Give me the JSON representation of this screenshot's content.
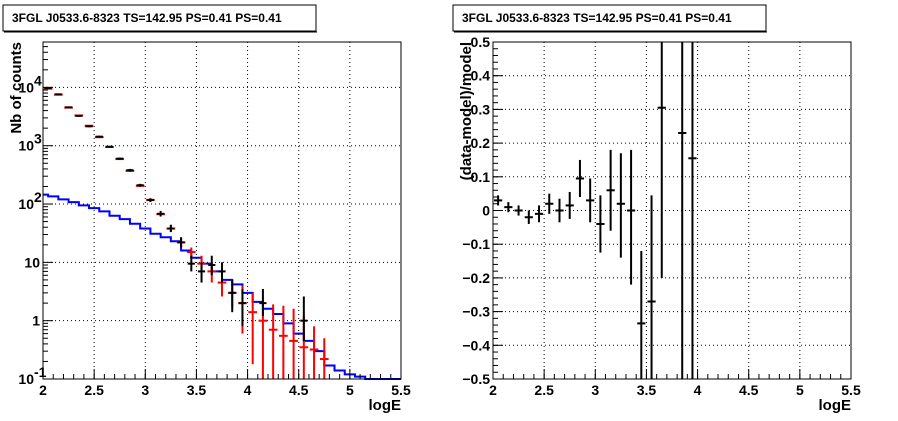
{
  "chart_data": [
    {
      "type": "line",
      "title": "3FGL J0533.6-8323 TS=142.95 PS=0.41 PS=0.41",
      "xlabel": "logE",
      "ylabel": "Nb of counts",
      "xlim": [
        2,
        5.5
      ],
      "ylim": [
        0.1,
        60000
      ],
      "yscale": "log",
      "grid": true,
      "x_ticks": [
        "2",
        "2.5",
        "3",
        "3.5",
        "4",
        "4.5",
        "5",
        "5.5"
      ],
      "y_ticks": [
        {
          "value": 0.1,
          "label": "10",
          "sup": "-1"
        },
        {
          "value": 1,
          "label": "1",
          "sup": ""
        },
        {
          "value": 10,
          "label": "10",
          "sup": ""
        },
        {
          "value": 100,
          "label": "10",
          "sup": "2"
        },
        {
          "value": 1000,
          "label": "10",
          "sup": "3"
        },
        {
          "value": 10000,
          "label": "10",
          "sup": "4"
        }
      ],
      "colors": {
        "data": "#000000",
        "model": "#ff0000",
        "component": "#0000ff"
      },
      "bin_width": 0.1,
      "series": [
        {
          "role": "model",
          "points": [
            {
              "x": 2.05,
              "y": 9500,
              "lo": 9500,
              "hi": 9500
            },
            {
              "x": 2.15,
              "y": 7500,
              "lo": 7500,
              "hi": 7500
            },
            {
              "x": 2.25,
              "y": 4500,
              "lo": 4500,
              "hi": 4500
            },
            {
              "x": 2.35,
              "y": 3300,
              "lo": 3300,
              "hi": 3300
            },
            {
              "x": 2.45,
              "y": 2200,
              "lo": 2200,
              "hi": 2200
            },
            {
              "x": 2.55,
              "y": 1400,
              "lo": 1400,
              "hi": 1400
            },
            {
              "x": 2.65,
              "y": 950,
              "lo": 950,
              "hi": 950
            },
            {
              "x": 2.75,
              "y": 590,
              "lo": 590,
              "hi": 590
            },
            {
              "x": 2.85,
              "y": 370,
              "lo": 370,
              "hi": 370
            },
            {
              "x": 2.95,
              "y": 205,
              "lo": 205,
              "hi": 205
            },
            {
              "x": 3.05,
              "y": 118,
              "lo": 118,
              "hi": 118
            },
            {
              "x": 3.15,
              "y": 67,
              "lo": 67,
              "hi": 67
            },
            {
              "x": 3.25,
              "y": 38,
              "lo": 34,
              "hi": 44
            },
            {
              "x": 3.35,
              "y": 22,
              "lo": 18,
              "hi": 26
            },
            {
              "x": 3.45,
              "y": 15,
              "lo": 12,
              "hi": 18
            },
            {
              "x": 3.55,
              "y": 9.5,
              "lo": 6.5,
              "hi": 13
            },
            {
              "x": 3.65,
              "y": 7,
              "lo": 4.5,
              "hi": 10
            },
            {
              "x": 3.75,
              "y": 4.5,
              "lo": 2.6,
              "hi": 6.5
            },
            {
              "x": 3.85,
              "y": 3.0,
              "lo": 1.7,
              "hi": 5
            },
            {
              "x": 3.95,
              "y": 2.0,
              "lo": 0.6,
              "hi": 4
            },
            {
              "x": 4.05,
              "y": 1.4,
              "lo": 0.18,
              "hi": 3.0
            },
            {
              "x": 4.15,
              "y": 1.0,
              "lo": 0.1,
              "hi": 2.2
            },
            {
              "x": 4.25,
              "y": 0.7,
              "lo": 0.1,
              "hi": 1.9
            },
            {
              "x": 4.35,
              "y": 0.55,
              "lo": 0.1,
              "hi": 1.8
            },
            {
              "x": 4.45,
              "y": 0.45,
              "lo": 0.1,
              "hi": 1.6
            },
            {
              "x": 4.55,
              "y": 0.35,
              "lo": 0.1,
              "hi": 1.2
            },
            {
              "x": 4.65,
              "y": 0.32,
              "lo": 0.1,
              "hi": 0.8
            },
            {
              "x": 4.75,
              "y": 0.22,
              "lo": 0.1,
              "hi": 0.5
            }
          ]
        },
        {
          "role": "data",
          "points": [
            {
              "x": 2.05,
              "y": 9800,
              "lo": 9600,
              "hi": 10000
            },
            {
              "x": 2.15,
              "y": 7600,
              "lo": 7450,
              "hi": 7750
            },
            {
              "x": 2.25,
              "y": 4550,
              "lo": 4450,
              "hi": 4650
            },
            {
              "x": 2.35,
              "y": 3250,
              "lo": 3150,
              "hi": 3350
            },
            {
              "x": 2.45,
              "y": 2150,
              "lo": 2080,
              "hi": 2220
            },
            {
              "x": 2.55,
              "y": 1430,
              "lo": 1380,
              "hi": 1480
            },
            {
              "x": 2.65,
              "y": 960,
              "lo": 930,
              "hi": 990
            },
            {
              "x": 2.75,
              "y": 600,
              "lo": 575,
              "hi": 625
            },
            {
              "x": 2.85,
              "y": 380,
              "lo": 360,
              "hi": 400
            },
            {
              "x": 2.95,
              "y": 210,
              "lo": 198,
              "hi": 222
            },
            {
              "x": 3.05,
              "y": 117,
              "lo": 108,
              "hi": 126
            },
            {
              "x": 3.15,
              "y": 68,
              "lo": 61,
              "hi": 76
            },
            {
              "x": 3.25,
              "y": 38,
              "lo": 33,
              "hi": 44
            },
            {
              "x": 3.35,
              "y": 22,
              "lo": 18,
              "hi": 27
            },
            {
              "x": 3.45,
              "y": 9.5,
              "lo": 7,
              "hi": 13
            },
            {
              "x": 3.55,
              "y": 7,
              "lo": 4.5,
              "hi": 10
            },
            {
              "x": 3.65,
              "y": 9,
              "lo": 6,
              "hi": 13
            },
            {
              "x": 3.75,
              "y": 7,
              "lo": 4.5,
              "hi": 10
            },
            {
              "x": 3.85,
              "y": 3,
              "lo": 1.4,
              "hi": 5
            },
            {
              "x": 3.95,
              "y": 2,
              "lo": 0.8,
              "hi": 3.5
            },
            {
              "x": 4.15,
              "y": 2,
              "lo": 1.2,
              "hi": 3.5
            },
            {
              "x": 4.55,
              "y": 1,
              "lo": 0.45,
              "hi": 2.6
            }
          ]
        },
        {
          "role": "component",
          "bin_edges": [
            1.95,
            2.05,
            2.15,
            2.25,
            2.35,
            2.45,
            2.55,
            2.65,
            2.75,
            2.85,
            2.95,
            3.05,
            3.15,
            3.25,
            3.35,
            3.45,
            3.55,
            3.65,
            3.75,
            3.85,
            3.95,
            4.05,
            4.15,
            4.25,
            4.35,
            4.45,
            4.55,
            4.65,
            4.75,
            4.85,
            4.95,
            5.05,
            5.15,
            5.25,
            5.35,
            5.5
          ],
          "values": [
            145,
            135,
            120,
            108,
            95,
            85,
            75,
            63,
            55,
            46,
            38,
            31,
            27,
            23,
            16,
            12,
            9.5,
            7,
            5,
            4.2,
            3.0,
            2.1,
            1.6,
            1.3,
            0.9,
            0.6,
            0.45,
            0.3,
            0.17,
            0.14,
            0.12,
            0.11,
            0.1,
            0.1,
            0.1
          ]
        }
      ]
    },
    {
      "type": "scatter",
      "title": "3FGL J0533.6-8323 TS=142.95 PS=0.41 PS=0.41",
      "xlabel": "logE",
      "ylabel": "(data-model)/model",
      "xlim": [
        2,
        5.5
      ],
      "ylim": [
        -0.5,
        0.5
      ],
      "grid": true,
      "x_ticks": [
        "2",
        "2.5",
        "3",
        "3.5",
        "4",
        "4.5",
        "5",
        "5.5"
      ],
      "y_ticks": [
        {
          "value": -0.5,
          "label": "−0.5"
        },
        {
          "value": -0.4,
          "label": "−0.4"
        },
        {
          "value": -0.3,
          "label": "−0.3"
        },
        {
          "value": -0.2,
          "label": "−0.2"
        },
        {
          "value": -0.1,
          "label": "−0.1"
        },
        {
          "value": 0,
          "label": "0"
        },
        {
          "value": 0.1,
          "label": "0.1"
        },
        {
          "value": 0.2,
          "label": "0.2"
        },
        {
          "value": 0.3,
          "label": "0.3"
        },
        {
          "value": 0.4,
          "label": "0.4"
        },
        {
          "value": 0.5,
          "label": "0.5"
        }
      ],
      "color": "#000000",
      "bin_width": 0.1,
      "points": [
        {
          "x": 2.05,
          "y": 0.03,
          "lo": 0.015,
          "hi": 0.045
        },
        {
          "x": 2.15,
          "y": 0.01,
          "lo": -0.005,
          "hi": 0.025
        },
        {
          "x": 2.25,
          "y": 0.0,
          "lo": -0.015,
          "hi": 0.015
        },
        {
          "x": 2.35,
          "y": -0.02,
          "lo": -0.04,
          "hi": 0.0
        },
        {
          "x": 2.45,
          "y": -0.01,
          "lo": -0.035,
          "hi": 0.015
        },
        {
          "x": 2.55,
          "y": 0.02,
          "lo": -0.01,
          "hi": 0.05
        },
        {
          "x": 2.65,
          "y": 0.0,
          "lo": -0.035,
          "hi": 0.035
        },
        {
          "x": 2.75,
          "y": 0.015,
          "lo": -0.025,
          "hi": 0.055
        },
        {
          "x": 2.85,
          "y": 0.095,
          "lo": 0.04,
          "hi": 0.15
        },
        {
          "x": 2.95,
          "y": 0.03,
          "lo": -0.035,
          "hi": 0.095
        },
        {
          "x": 3.05,
          "y": -0.04,
          "lo": -0.125,
          "hi": 0.045
        },
        {
          "x": 3.15,
          "y": 0.06,
          "lo": -0.06,
          "hi": 0.18
        },
        {
          "x": 3.25,
          "y": 0.02,
          "lo": -0.14,
          "hi": 0.17
        },
        {
          "x": 3.35,
          "y": 0.0,
          "lo": -0.22,
          "hi": 0.18
        },
        {
          "x": 3.45,
          "y": -0.335,
          "lo": -0.5,
          "hi": -0.12
        },
        {
          "x": 3.55,
          "y": -0.27,
          "lo": -0.5,
          "hi": 0.045
        },
        {
          "x": 3.65,
          "y": 0.305,
          "lo": -0.2,
          "hi": 0.5
        },
        {
          "x": 3.85,
          "y": 0.23,
          "lo": -0.5,
          "hi": 0.5
        },
        {
          "x": 3.95,
          "y": 0.155,
          "lo": -0.5,
          "hi": 0.5
        }
      ]
    }
  ]
}
